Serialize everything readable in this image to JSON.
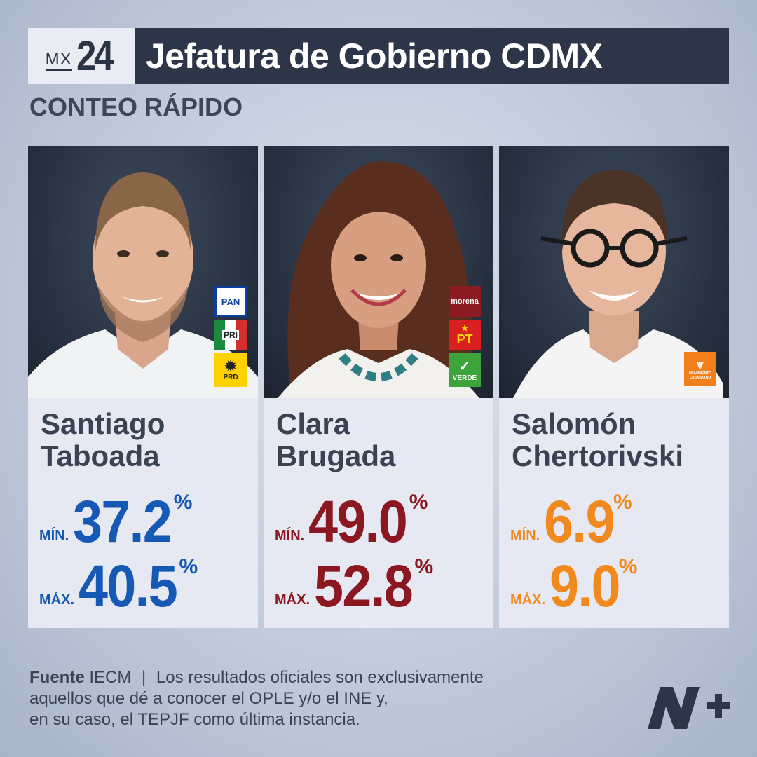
{
  "header": {
    "logo_prefix": "MX",
    "logo_number": "24",
    "title": "Jefatura de Gobierno CDMX",
    "subtitle": "CONTEO RÁPIDO"
  },
  "labels": {
    "min": "MÍN.",
    "max": "MÁX.",
    "percent": "%"
  },
  "candidates": [
    {
      "first_name": "Santiago",
      "last_name": "Taboada",
      "min": "37.2",
      "max": "40.5",
      "color": "#1559b5",
      "parties": [
        "PAN",
        "PRI",
        "PRD"
      ]
    },
    {
      "first_name": "Clara",
      "last_name": "Brugada",
      "min": "49.0",
      "max": "52.8",
      "color": "#8b1720",
      "parties": [
        "morena",
        "PT",
        "VERDE"
      ]
    },
    {
      "first_name": "Salomón",
      "last_name": "Chertorivski",
      "min": "6.9",
      "max": "9.0",
      "color": "#f08a1f",
      "parties": [
        "MOVIMIENTO CIUDADANO"
      ]
    }
  ],
  "footer": {
    "source_label": "Fuente",
    "source": "IECM",
    "separator": "|",
    "line1": "Los resultados oficiales son exclusivamente",
    "line2": "aquellos que dé a conocer el OPLE y/o el INE y,",
    "line3": "en su caso, el TEPJF como última instancia."
  },
  "brand_logo": "n-plus-logo"
}
